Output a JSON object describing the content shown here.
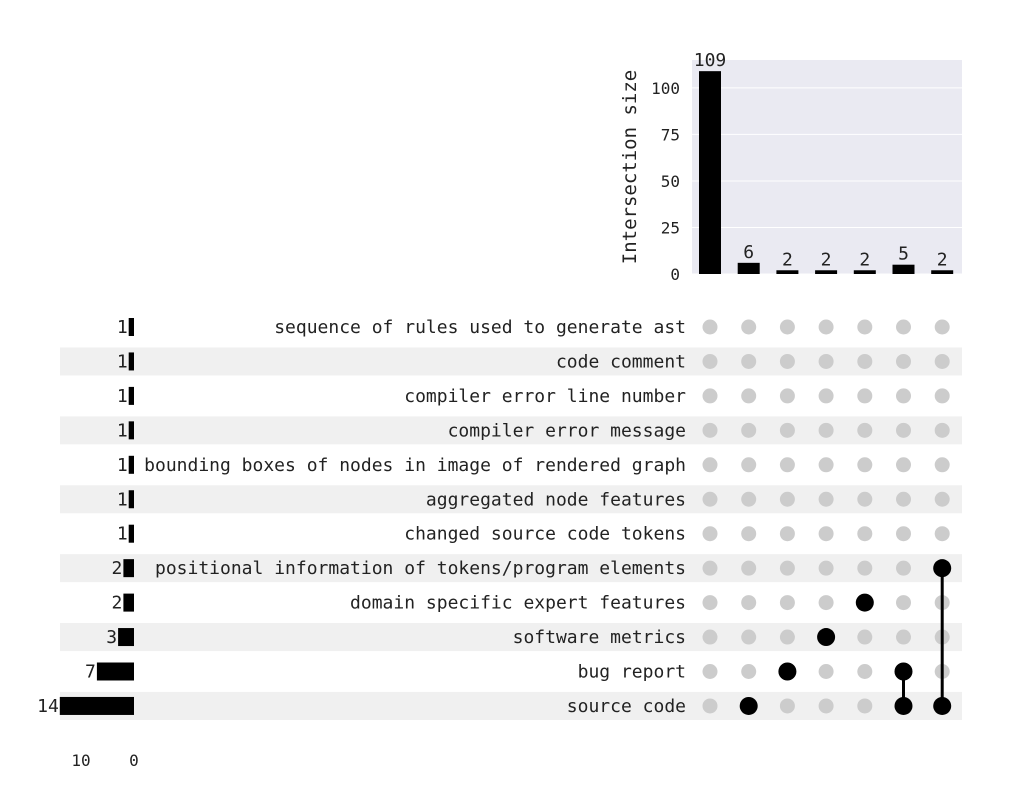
{
  "chart_data": {
    "type": "upset",
    "intersections": {
      "ylabel": "Intersection size",
      "ylim": [
        0,
        115
      ],
      "yticks": [
        0,
        25,
        50,
        75,
        100
      ],
      "values": [
        109,
        6,
        2,
        2,
        2,
        5,
        2
      ],
      "members": [
        [],
        [
          "source code"
        ],
        [
          "bug report"
        ],
        [
          "software metrics"
        ],
        [
          "domain specific expert features"
        ],
        [
          "bug report",
          "source code"
        ],
        [
          "positional information of tokens/program elements",
          "source code"
        ]
      ]
    },
    "sets": {
      "names": [
        "sequence of rules used to generate ast",
        "code comment",
        "compiler error line number",
        "compiler error message",
        "bounding boxes of nodes in image of rendered graph",
        "aggregated node features",
        "changed source code tokens",
        "positional information of tokens/program elements",
        "domain specific expert features",
        "software metrics",
        "bug report",
        "source code"
      ],
      "sizes": [
        1,
        1,
        1,
        1,
        1,
        1,
        1,
        2,
        2,
        3,
        7,
        14
      ],
      "xticks": [
        10,
        0
      ]
    },
    "grid": true,
    "colors": {
      "bar": "#000000",
      "dot_active": "#000000",
      "dot_inactive": "#cccccc",
      "plot_background": "#eaeaf2",
      "row_stripe": "#f0f0f0",
      "gridline": "#ffffff"
    }
  }
}
